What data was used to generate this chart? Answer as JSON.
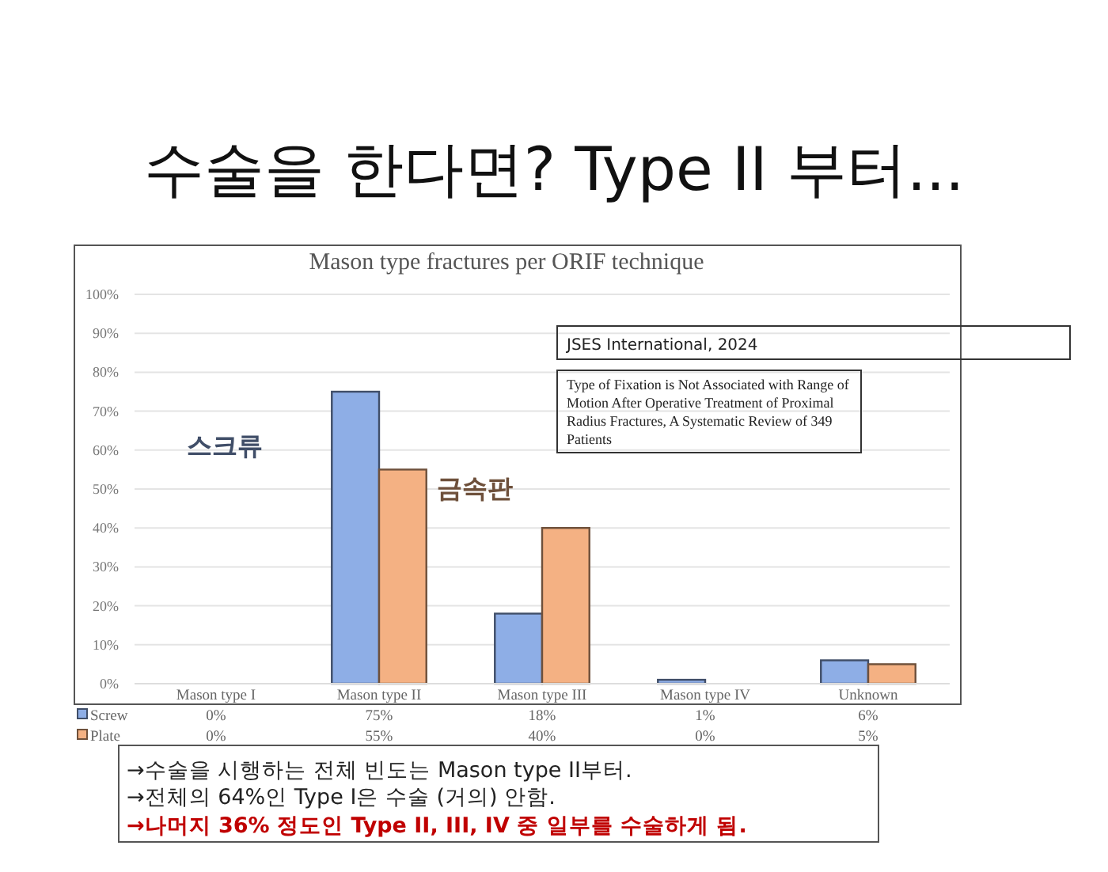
{
  "chart_data": {
    "type": "bar",
    "title": "수술을 한다면? Type II 부터...",
    "subtitle": "Mason type fractures per ORIF technique",
    "categories": [
      "Mason type I",
      "Mason type II",
      "Mason type III",
      "Mason type IV",
      "Unknown"
    ],
    "series": [
      {
        "name": "Screw",
        "color": "#8eaee6",
        "values": [
          0,
          75,
          18,
          1,
          6
        ],
        "value_labels": [
          "0%",
          "75%",
          "18%",
          "1%",
          "6%"
        ]
      },
      {
        "name": "Plate",
        "color": "#f4b183",
        "values": [
          0,
          55,
          40,
          0,
          5
        ],
        "value_labels": [
          "0%",
          "55%",
          "40%",
          "0%",
          "5%"
        ]
      }
    ],
    "ylim": [
      0,
      100
    ],
    "yticks": [
      {
        "value": 0,
        "label": "0%"
      },
      {
        "value": 10,
        "label": "10%"
      },
      {
        "value": 20,
        "label": "20%"
      },
      {
        "value": 30,
        "label": "30%"
      },
      {
        "value": 40,
        "label": "40%"
      },
      {
        "value": 50,
        "label": "50%"
      },
      {
        "value": 60,
        "label": "60%"
      },
      {
        "value": 70,
        "label": "70%"
      },
      {
        "value": 80,
        "label": "80%"
      },
      {
        "value": 90,
        "label": "90%"
      },
      {
        "value": 100,
        "label": "100%"
      }
    ],
    "grid": "y",
    "legend": "bottom left",
    "annotations": [
      "스크류",
      "금속판",
      "JSES International, 2024",
      "Type of Fixation is Not Associated with Range of Motion After Operative Treatment of Proximal Radius Fractures, A Systematic Review of 349 Patients",
      "→수술을 시행하는 전체 빈도는 Mason type II부터.",
      "→전체의 64%인 Type I은 수술 (거의) 안함.",
      "→나머지 36% 정도인 Type II, III, IV 중 일부를 수술하게 됨."
    ]
  }
}
